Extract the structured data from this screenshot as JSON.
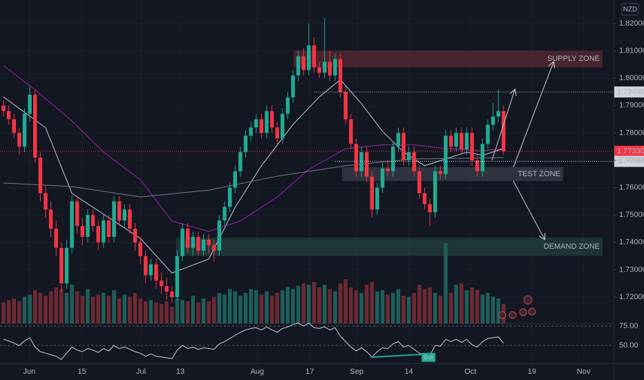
{
  "header": {
    "currency": "NZD"
  },
  "chart_data": {
    "type": "candlestick",
    "up_color": "#22ab94",
    "down_color": "#f23645",
    "ohlc": [
      [
        1.79,
        1.792,
        1.786,
        1.788
      ],
      [
        1.788,
        1.79,
        1.783,
        1.785
      ],
      [
        1.785,
        1.787,
        1.778,
        1.78
      ],
      [
        1.78,
        1.782,
        1.772,
        1.775
      ],
      [
        1.775,
        1.789,
        1.773,
        1.787
      ],
      [
        1.787,
        1.797,
        1.784,
        1.794
      ],
      [
        1.794,
        1.796,
        1.769,
        1.771
      ],
      [
        1.771,
        1.773,
        1.755,
        1.758
      ],
      [
        1.758,
        1.761,
        1.749,
        1.752
      ],
      [
        1.752,
        1.755,
        1.742,
        1.745
      ],
      [
        1.745,
        1.748,
        1.735,
        1.738
      ],
      [
        1.738,
        1.74,
        1.722,
        1.725
      ],
      [
        1.725,
        1.741,
        1.723,
        1.738
      ],
      [
        1.738,
        1.757,
        1.736,
        1.755
      ],
      [
        1.755,
        1.757,
        1.743,
        1.746
      ],
      [
        1.746,
        1.749,
        1.739,
        1.742
      ],
      [
        1.742,
        1.752,
        1.74,
        1.75
      ],
      [
        1.75,
        1.752,
        1.744,
        1.746
      ],
      [
        1.746,
        1.748,
        1.737,
        1.74
      ],
      [
        1.74,
        1.75,
        1.738,
        1.748
      ],
      [
        1.748,
        1.75,
        1.74,
        1.742
      ],
      [
        1.742,
        1.757,
        1.74,
        1.755
      ],
      [
        1.755,
        1.757,
        1.746,
        1.748
      ],
      [
        1.748,
        1.754,
        1.745,
        1.752
      ],
      [
        1.752,
        1.754,
        1.743,
        1.745
      ],
      [
        1.745,
        1.747,
        1.737,
        1.74
      ],
      [
        1.74,
        1.742,
        1.732,
        1.735
      ],
      [
        1.735,
        1.737,
        1.725,
        1.728
      ],
      [
        1.728,
        1.734,
        1.726,
        1.732
      ],
      [
        1.732,
        1.734,
        1.723,
        1.726
      ],
      [
        1.726,
        1.729,
        1.721,
        1.724
      ],
      [
        1.724,
        1.727,
        1.719,
        1.722
      ],
      [
        1.722,
        1.724,
        1.718,
        1.72
      ],
      [
        1.72,
        1.737,
        1.719,
        1.735
      ],
      [
        1.735,
        1.747,
        1.733,
        1.745
      ],
      [
        1.745,
        1.747,
        1.736,
        1.738
      ],
      [
        1.738,
        1.744,
        1.735,
        1.742
      ],
      [
        1.742,
        1.744,
        1.735,
        1.737
      ],
      [
        1.737,
        1.743,
        1.735,
        1.741
      ],
      [
        1.741,
        1.743,
        1.736,
        1.739
      ],
      [
        1.739,
        1.741,
        1.733,
        1.737
      ],
      [
        1.737,
        1.75,
        1.735,
        1.748
      ],
      [
        1.748,
        1.755,
        1.746,
        1.753
      ],
      [
        1.753,
        1.762,
        1.751,
        1.76
      ],
      [
        1.76,
        1.768,
        1.758,
        1.766
      ],
      [
        1.766,
        1.775,
        1.764,
        1.773
      ],
      [
        1.773,
        1.781,
        1.771,
        1.779
      ],
      [
        1.779,
        1.784,
        1.777,
        1.782
      ],
      [
        1.782,
        1.787,
        1.78,
        1.785
      ],
      [
        1.785,
        1.787,
        1.778,
        1.78
      ],
      [
        1.78,
        1.79,
        1.778,
        1.788
      ],
      [
        1.788,
        1.79,
        1.78,
        1.782
      ],
      [
        1.782,
        1.784,
        1.776,
        1.778
      ],
      [
        1.778,
        1.789,
        1.776,
        1.787
      ],
      [
        1.787,
        1.795,
        1.785,
        1.793
      ],
      [
        1.793,
        1.803,
        1.791,
        1.801
      ],
      [
        1.801,
        1.81,
        1.799,
        1.808
      ],
      [
        1.808,
        1.811,
        1.801,
        1.803
      ],
      [
        1.803,
        1.82,
        1.801,
        1.812
      ],
      [
        1.812,
        1.815,
        1.802,
        1.804
      ],
      [
        1.804,
        1.806,
        1.8,
        1.802
      ],
      [
        1.802,
        1.822,
        1.8,
        1.806
      ],
      [
        1.806,
        1.81,
        1.799,
        1.801
      ],
      [
        1.801,
        1.809,
        1.799,
        1.807
      ],
      [
        1.807,
        1.809,
        1.793,
        1.795
      ],
      [
        1.795,
        1.797,
        1.783,
        1.785
      ],
      [
        1.785,
        1.787,
        1.774,
        1.776
      ],
      [
        1.776,
        1.778,
        1.764,
        1.766
      ],
      [
        1.766,
        1.775,
        1.764,
        1.773
      ],
      [
        1.773,
        1.775,
        1.762,
        1.764
      ],
      [
        1.764,
        1.766,
        1.749,
        1.752
      ],
      [
        1.752,
        1.762,
        1.75,
        1.76
      ],
      [
        1.76,
        1.769,
        1.758,
        1.767
      ],
      [
        1.767,
        1.77,
        1.764,
        1.766
      ],
      [
        1.766,
        1.777,
        1.764,
        1.775
      ],
      [
        1.775,
        1.782,
        1.773,
        1.78
      ],
      [
        1.78,
        1.782,
        1.768,
        1.77
      ],
      [
        1.77,
        1.775,
        1.768,
        1.773
      ],
      [
        1.773,
        1.775,
        1.764,
        1.766
      ],
      [
        1.766,
        1.768,
        1.756,
        1.758
      ],
      [
        1.758,
        1.76,
        1.752,
        1.754
      ],
      [
        1.754,
        1.756,
        1.746,
        1.751
      ],
      [
        1.751,
        1.768,
        1.749,
        1.766
      ],
      [
        1.766,
        1.768,
        1.763,
        1.765
      ],
      [
        1.765,
        1.781,
        1.763,
        1.779
      ],
      [
        1.779,
        1.781,
        1.773,
        1.775
      ],
      [
        1.775,
        1.782,
        1.773,
        1.78
      ],
      [
        1.78,
        1.782,
        1.772,
        1.774
      ],
      [
        1.774,
        1.782,
        1.772,
        1.78
      ],
      [
        1.78,
        1.782,
        1.768,
        1.77
      ],
      [
        1.77,
        1.772,
        1.764,
        1.766
      ],
      [
        1.766,
        1.778,
        1.764,
        1.776
      ],
      [
        1.776,
        1.785,
        1.774,
        1.783
      ],
      [
        1.783,
        1.791,
        1.781,
        1.786
      ],
      [
        1.786,
        1.796,
        1.784,
        1.788
      ],
      [
        1.788,
        1.79,
        1.772,
        1.7733
      ]
    ],
    "volume": [
      38,
      42,
      45,
      40,
      48,
      52,
      60,
      55,
      50,
      58,
      65,
      62,
      55,
      70,
      58,
      50,
      62,
      48,
      52,
      55,
      50,
      60,
      45,
      52,
      48,
      55,
      45,
      40,
      42,
      38,
      35,
      40,
      30,
      45,
      42,
      40,
      50,
      38,
      45,
      40,
      48,
      55,
      52,
      62,
      58,
      50,
      55,
      62,
      60,
      52,
      58,
      50,
      55,
      60,
      66,
      62,
      68,
      72,
      70,
      75,
      65,
      70,
      62,
      58,
      72,
      80,
      65,
      60,
      55,
      70,
      75,
      58,
      60,
      52,
      55,
      62,
      50,
      48,
      55,
      70,
      62,
      65,
      55,
      50,
      145,
      55,
      70,
      72,
      60,
      65,
      60,
      52,
      55,
      48,
      45,
      35
    ],
    "volume_up_color": "#1e5f5b",
    "volume_down_color": "#6e2a33",
    "xlim": [
      -0.66,
      115.9
    ],
    "xticks": [
      {
        "value": 4.9,
        "label": "Jun"
      },
      {
        "value": 14.9,
        "label": "15"
      },
      {
        "value": 26.1,
        "label": "Jul"
      },
      {
        "value": 33.6,
        "label": "13"
      },
      {
        "value": 48.2,
        "label": "Aug"
      },
      {
        "value": 58.2,
        "label": "17"
      },
      {
        "value": 67.1,
        "label": "Sep"
      },
      {
        "value": 77.0,
        "label": "14"
      },
      {
        "value": 88.7,
        "label": "Oct"
      },
      {
        "value": 100.4,
        "label": "19"
      },
      {
        "value": 110.2,
        "label": "Nov"
      }
    ],
    "ylim": [
      1.7104,
      1.8286
    ],
    "yticks": [
      {
        "value": 1.72,
        "label": "1.72000"
      },
      {
        "value": 1.73,
        "label": "1.73000"
      },
      {
        "value": 1.74,
        "label": "1.74000"
      },
      {
        "value": 1.75,
        "label": "1.75000"
      },
      {
        "value": 1.76,
        "label": "1.76000"
      },
      {
        "value": 1.77,
        "label": "1.77000"
      },
      {
        "value": 1.78,
        "label": "1.78000"
      },
      {
        "value": 1.79,
        "label": "1.79000"
      },
      {
        "value": 1.8,
        "label": "1.80000"
      },
      {
        "value": 1.81,
        "label": "1.81000"
      },
      {
        "value": 1.82,
        "label": "1.82000"
      }
    ],
    "grid": true,
    "moving_averages": [
      {
        "color": "#c8cbd2",
        "x": [
          0,
          8,
          13,
          19,
          26,
          32,
          39,
          44,
          49,
          55,
          60,
          64,
          68,
          72,
          76,
          80,
          84,
          88,
          91,
          95
        ],
        "values": [
          1.7932,
          1.7819,
          1.7579,
          1.7503,
          1.7415,
          1.7288,
          1.7339,
          1.7528,
          1.768,
          1.7831,
          1.7932,
          1.7995,
          1.7907,
          1.7806,
          1.773,
          1.768,
          1.7705,
          1.773,
          1.7718,
          1.7743
        ]
      },
      {
        "color": "#9c27b0",
        "x": [
          0,
          6,
          13,
          19,
          26,
          32,
          39,
          45,
          52,
          58,
          65,
          72,
          78,
          84,
          91,
          95
        ],
        "values": [
          1.8046,
          1.7958,
          1.7844,
          1.773,
          1.7629,
          1.7478,
          1.744,
          1.7478,
          1.7566,
          1.7667,
          1.7743,
          1.7756,
          1.7756,
          1.7743,
          1.7735,
          1.7743
        ]
      },
      {
        "color": "#787b86",
        "x": [
          0,
          13,
          26,
          39,
          52,
          65,
          78,
          95
        ],
        "values": [
          1.7617,
          1.7604,
          1.7566,
          1.7591,
          1.7642,
          1.768,
          1.7705,
          1.771
        ]
      }
    ],
    "zones": [
      {
        "label": "SUPPLY ZONE",
        "x": [
          55.1,
          113.8
        ],
        "y": [
          1.804,
          1.8101
        ],
        "color": "#5a2a33"
      },
      {
        "label": "TEST ZONE",
        "x": [
          64.3,
          106.3
        ],
        "y": [
          1.7624,
          1.7675
        ],
        "color": "#3a3e49"
      },
      {
        "label": "DEMAND ZONE",
        "x": [
          32.8,
          113.8
        ],
        "y": [
          1.7351,
          1.7417
        ],
        "color": "#23403c"
      }
    ],
    "price_lines": [
      {
        "value": 1.79498,
        "label": "1.79498",
        "x_start": 59,
        "color": "#d1d4dc",
        "text_color": "#131722"
      },
      {
        "value": 1.7733,
        "label": "1.77330",
        "x_start": -0.66,
        "color": "#f23645",
        "text_color": "#ffffff"
      },
      {
        "value": 1.7696,
        "label": "1.76960",
        "x_start": 63,
        "color": "#d1d4dc",
        "text_color": "#131722"
      }
    ],
    "rsi": {
      "color": "#d1d4dc",
      "values": [
        58,
        56,
        53,
        50,
        56,
        60,
        48,
        42,
        40,
        38,
        36,
        32,
        40,
        48,
        44,
        42,
        46,
        44,
        41,
        46,
        43,
        50,
        46,
        48,
        45,
        42,
        40,
        36,
        39,
        36,
        35,
        34,
        33,
        44,
        50,
        46,
        48,
        45,
        47,
        46,
        45,
        52,
        55,
        59,
        63,
        67,
        70,
        72,
        73,
        70,
        74,
        70,
        67,
        72,
        74,
        77,
        79,
        75,
        79,
        73,
        72,
        74,
        70,
        73,
        62,
        55,
        48,
        43,
        47,
        42,
        35,
        42,
        47,
        46,
        52,
        55,
        48,
        50,
        45,
        40,
        38,
        37,
        50,
        49,
        58,
        55,
        58,
        54,
        58,
        51,
        48,
        55,
        59,
        60,
        61,
        53
      ],
      "ylim": [
        26.8,
        78.6
      ],
      "yticks": [
        {
          "value": 75,
          "label": "75.00"
        },
        {
          "value": 50,
          "label": "50.00"
        }
      ],
      "divergence": {
        "x": [
          70,
          79.7
        ],
        "values": [
          34.8,
          38.6
        ],
        "label": "Bull",
        "color": "#22ab94"
      }
    }
  }
}
